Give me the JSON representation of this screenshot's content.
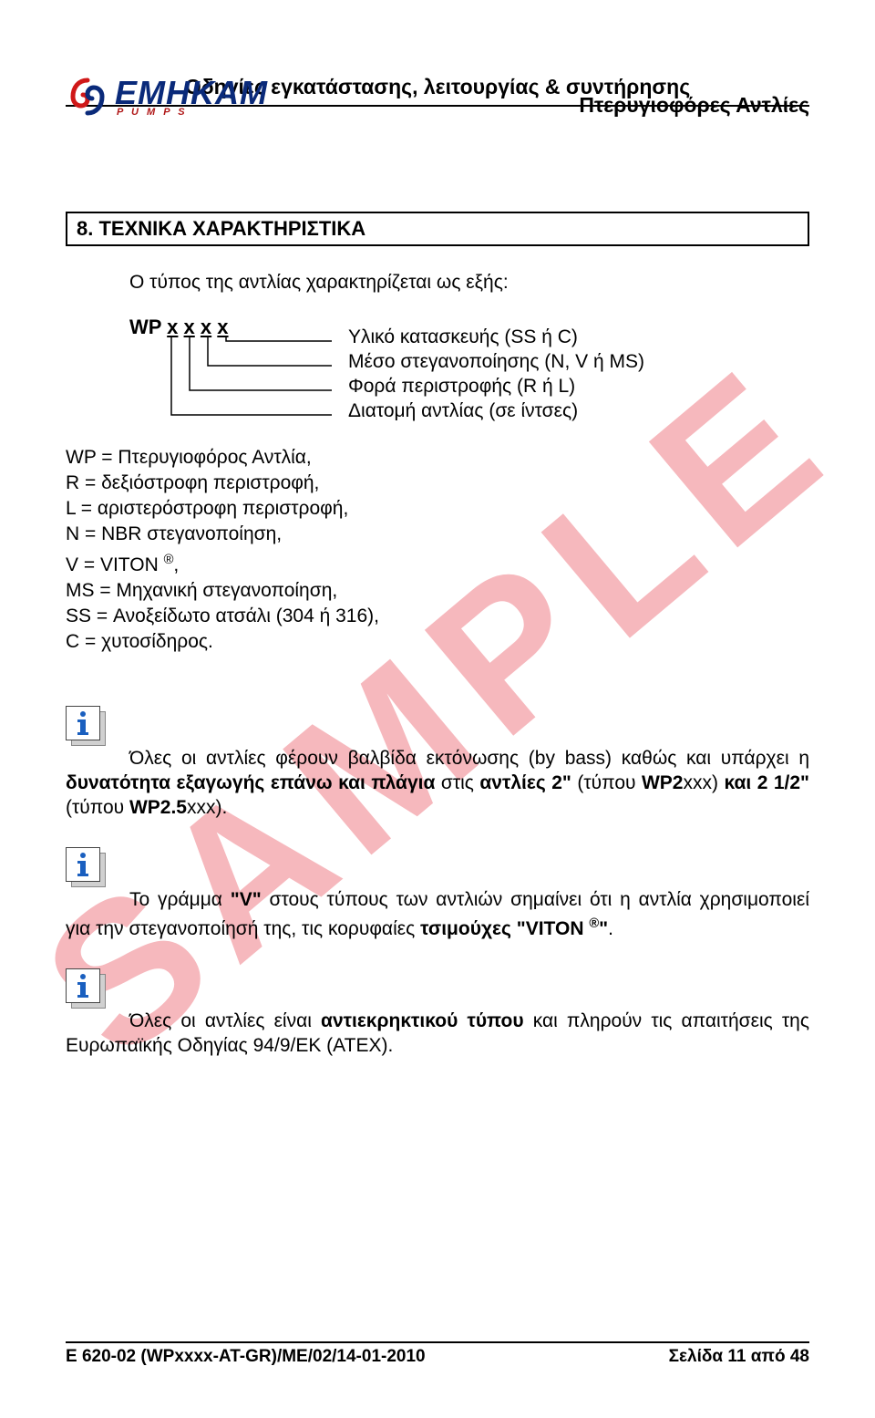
{
  "logo": {
    "main": "EMHKAM",
    "sub": "P U M P S",
    "color_main": "#0a2a7a",
    "color_sub": "#b01818",
    "swirl_colors": [
      "#d01818",
      "#0a2a7a"
    ]
  },
  "header": {
    "title_right": "Πτερυγιοφόρες Αντλίες",
    "subtitle": "Οδηγίες εγκατάστασης, λειτουργίας & συντήρησης"
  },
  "watermark": {
    "text": "SAMPLE",
    "color": "#f6b8bd"
  },
  "section": {
    "number_title": "8. ΤΕΧΝΙΚΑ ΧΑΡΑΚΤΗΡΙΣΤΙΚΑ"
  },
  "intro": "Ο τύπος της αντλίας χαρακτηρίζεται ως εξής:",
  "type_diagram": {
    "prefix": "WP",
    "placeholders": [
      "x",
      "x",
      "x",
      "x"
    ],
    "labels": [
      "Υλικό κατασκευής (SS ή C)",
      "Μέσο στεγανοποίησης (N, V ή MS)",
      "Φορά περιστροφής (R ή L)",
      "Διατομή αντλίας (σε ίντσες)"
    ],
    "line_color": "#000000"
  },
  "definitions": [
    "WP = Πτερυγιοφόρος Αντλία,",
    "R = δεξιόστροφη περιστροφή,",
    "L = αριστερόστροφη περιστροφή,",
    "N = NBR στεγανοποίηση,",
    "V = VITON ®,",
    "MS = Μηχανική στεγανοποίηση,",
    "SS = Ανοξείδωτο ατσάλι (304 ή 316),",
    "C = χυτοσίδηρος."
  ],
  "info_icon": {
    "glyph_color": "#1a5fbf"
  },
  "info_blocks": [
    {
      "html": "Όλες οι αντλίες φέρουν βαλβίδα εκτόνωσης (by bass) καθώς και υπάρχει η <b>δυνατότητα εξαγωγής επάνω και πλάγια</b> στις <b>αντλίες 2\"</b> (τύπου <b>WP2</b>xxx) <b>και 2 1/2\"</b> (τύπου <b>WP2.5</b>xxx)."
    },
    {
      "html": "Το γράμμα <b>\"V\"</b> στους τύπους των αντλιών σημαίνει ότι η αντλία χρησιμοποιεί για την στεγανοποίησή της, τις κορυφαίες <b>τσιμούχες \"VITON <span class='sup'>®</span>\"</b>."
    },
    {
      "html": "Όλες οι αντλίες είναι <b>αντιεκρηκτικού τύπου</b> και πληρούν τις απαιτήσεις της Ευρωπαϊκής Οδηγίας 94/9/ΕΚ (ΑΤΕΧ)."
    }
  ],
  "footer": {
    "left": "E 620-02 (WPxxxx-AT-GR)/ME/02/14-01-2010",
    "right": "Σελίδα 11 από 48"
  }
}
